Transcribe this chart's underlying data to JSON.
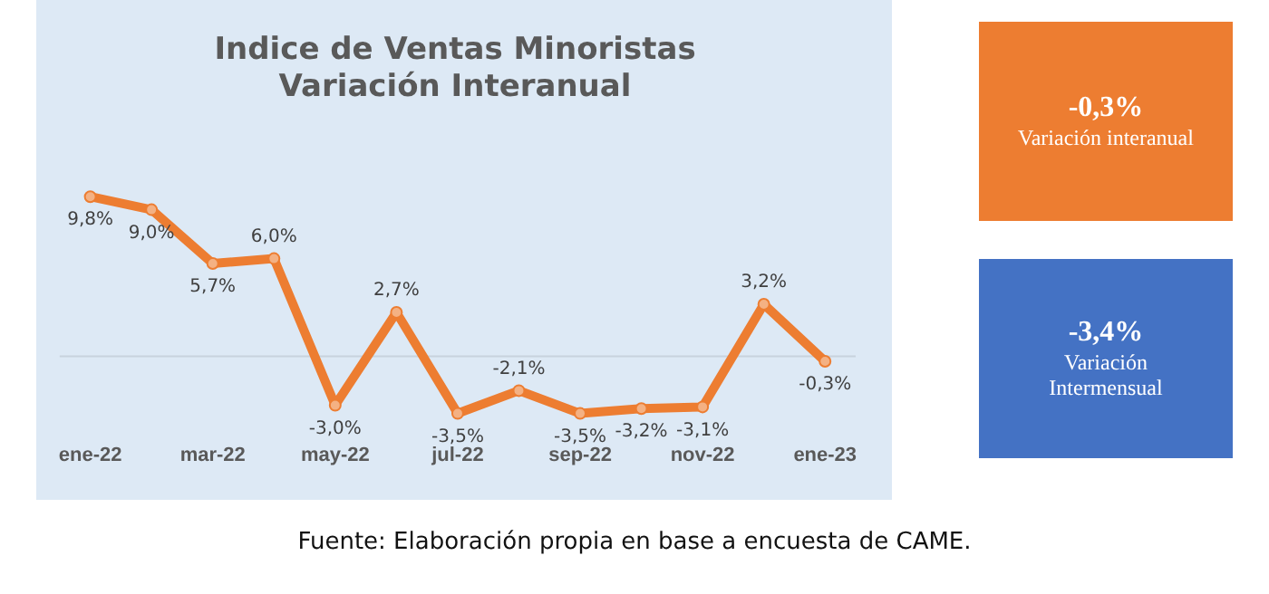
{
  "chart_data": {
    "type": "line",
    "title": "Indice de Ventas Minoristas",
    "subtitle": "Variación Interanual",
    "categories": [
      "ene-22",
      null,
      "mar-22",
      null,
      "may-22",
      null,
      "jul-22",
      null,
      "sep-22",
      null,
      "nov-22",
      null,
      "ene-23"
    ],
    "series": [
      {
        "color": "#ed7d31",
        "values": [
          9.8,
          9.0,
          5.7,
          6.0,
          -3.0,
          2.7,
          -3.5,
          -2.1,
          -3.5,
          -3.2,
          -3.1,
          3.2,
          -0.3
        ],
        "value_labels": [
          "9,8%",
          "9,0%",
          "5,7%",
          "6,0%",
          "-3,0%",
          "2,7%",
          "-3,5%",
          "-2,1%",
          "-3,5%",
          "-3,2%",
          "-3,1%",
          "3,2%",
          "-0,3%"
        ]
      }
    ],
    "marker": "circle",
    "grid": false,
    "legend": false,
    "annotations": [
      "-0,3%",
      "Variación interanual",
      "-3,4%",
      "Variación Intermensual",
      "Fuente: Elaboración propia en base a encuesta de CAME."
    ]
  }
}
